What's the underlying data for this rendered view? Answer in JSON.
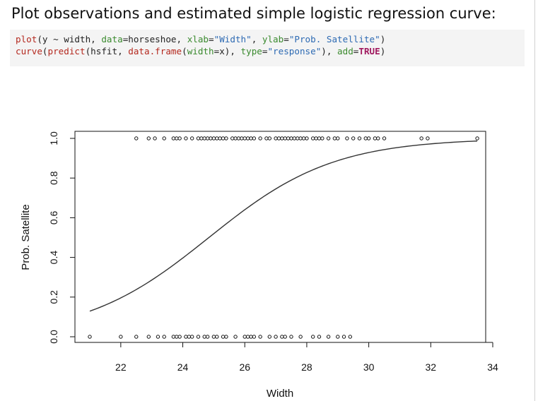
{
  "heading": "Plot observations and estimated simple logistic regression curve:",
  "code": {
    "line1": [
      {
        "t": "plot",
        "c": "c-fn"
      },
      {
        "t": "(y ~ width, ",
        "c": "c-plain"
      },
      {
        "t": "data",
        "c": "c-arg"
      },
      {
        "t": "=horseshoe, ",
        "c": "c-plain"
      },
      {
        "t": "xlab",
        "c": "c-arg"
      },
      {
        "t": "=",
        "c": "c-plain"
      },
      {
        "t": "\"Width\"",
        "c": "c-str"
      },
      {
        "t": ", ",
        "c": "c-plain"
      },
      {
        "t": "ylab",
        "c": "c-arg"
      },
      {
        "t": "=",
        "c": "c-plain"
      },
      {
        "t": "\"Prob. Satellite\"",
        "c": "c-str"
      },
      {
        "t": ")",
        "c": "c-plain"
      }
    ],
    "line2": [
      {
        "t": "curve",
        "c": "c-fn"
      },
      {
        "t": "(",
        "c": "c-plain"
      },
      {
        "t": "predict",
        "c": "c-fn"
      },
      {
        "t": "(hsfit, ",
        "c": "c-plain"
      },
      {
        "t": "data.frame",
        "c": "c-fn"
      },
      {
        "t": "(",
        "c": "c-plain"
      },
      {
        "t": "width",
        "c": "c-arg"
      },
      {
        "t": "=x), ",
        "c": "c-plain"
      },
      {
        "t": "type",
        "c": "c-arg"
      },
      {
        "t": "=",
        "c": "c-plain"
      },
      {
        "t": "\"response\"",
        "c": "c-str"
      },
      {
        "t": "), ",
        "c": "c-plain"
      },
      {
        "t": "add",
        "c": "c-arg"
      },
      {
        "t": "=",
        "c": "c-plain"
      },
      {
        "t": "TRUE",
        "c": "c-kw"
      },
      {
        "t": ")",
        "c": "c-plain"
      }
    ]
  },
  "chart_data": {
    "type": "scatter",
    "xlabel": "Width",
    "ylabel": "Prob. Satellite",
    "xlim": [
      21,
      34
    ],
    "ylim": [
      0,
      1
    ],
    "xticks": [
      22,
      24,
      26,
      28,
      30,
      32,
      34
    ],
    "yticks": [
      0.0,
      0.2,
      0.4,
      0.6,
      0.8,
      1.0
    ],
    "xtick_labels": [
      "22",
      "24",
      "26",
      "28",
      "30",
      "32",
      "34"
    ],
    "ytick_labels": [
      "0.0",
      "0.2",
      "0.4",
      "0.6",
      "0.8",
      "1.0"
    ],
    "grid": false,
    "points_y1": [
      22.5,
      22.9,
      23.1,
      23.4,
      23.7,
      23.8,
      23.9,
      24.1,
      24.3,
      24.5,
      24.6,
      24.7,
      24.8,
      24.9,
      25.0,
      25.1,
      25.2,
      25.3,
      25.4,
      25.6,
      25.7,
      25.8,
      25.9,
      26.0,
      26.1,
      26.2,
      26.3,
      26.5,
      26.7,
      26.8,
      27.0,
      27.1,
      27.2,
      27.3,
      27.4,
      27.5,
      27.6,
      27.7,
      27.8,
      27.9,
      28.0,
      28.2,
      28.3,
      28.4,
      28.5,
      28.7,
      28.9,
      29.0,
      29.3,
      29.5,
      29.7,
      29.9,
      30.0,
      30.2,
      30.3,
      30.5,
      31.7,
      31.9,
      33.5
    ],
    "points_y0": [
      21.0,
      22.0,
      22.5,
      22.9,
      23.2,
      23.4,
      23.7,
      23.8,
      23.9,
      24.1,
      24.2,
      24.3,
      24.5,
      24.7,
      24.8,
      25.0,
      25.1,
      25.3,
      25.4,
      25.7,
      26.0,
      26.1,
      26.2,
      26.3,
      26.5,
      26.8,
      27.0,
      27.2,
      27.3,
      27.5,
      27.8,
      28.2,
      28.4,
      28.7,
      29.0,
      29.2,
      29.4
    ],
    "curve": {
      "type": "logistic",
      "intercept": -12.351,
      "slope": 0.4972,
      "x_from": 21.0,
      "x_to": 33.5
    }
  }
}
